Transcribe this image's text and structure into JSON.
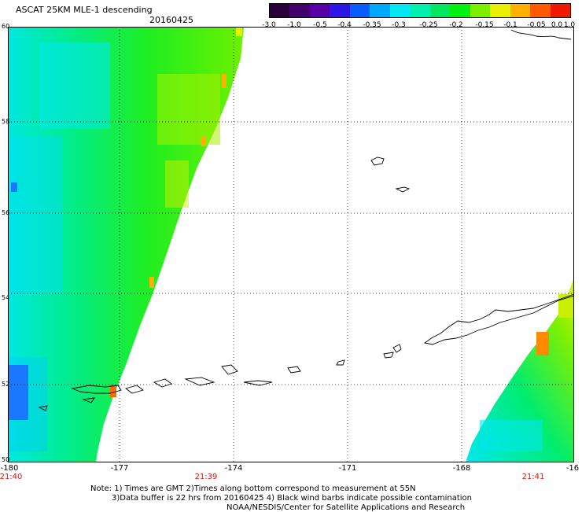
{
  "header": {
    "title": "ASCAT 25KM MLE-1 descending",
    "date": "20160425"
  },
  "colorbar": {
    "colors": [
      "#2a003a",
      "#42006a",
      "#5800a8",
      "#2b17e6",
      "#0a5cff",
      "#00a8ff",
      "#00e8f0",
      "#00f0b0",
      "#00e860",
      "#00f010",
      "#7af000",
      "#e8f000",
      "#ffb000",
      "#ff5a00",
      "#f01800"
    ],
    "labels": [
      "-3.0",
      "-1.0",
      "-0.5",
      "-0.4",
      "-0.35",
      "-0.3",
      "-0.25",
      "-0.2",
      "-0.15",
      "-0.1",
      "-0.05",
      "0.0",
      "1.0"
    ]
  },
  "map": {
    "lat_labels": [
      "60",
      "58",
      "56",
      "54",
      "52",
      "50"
    ],
    "lon_labels": [
      "-180",
      "-177",
      "-174",
      "-171",
      "-168",
      "-16"
    ],
    "times": [
      "21:40",
      "21:39",
      "21:41"
    ]
  },
  "footer": {
    "line1": "Note: 1) Times are GMT 2)Times along bottom correspond to measurement at 55N",
    "line2": "3)Data buffer is 22 hrs from 20160425 4) Black wind barbs indicate possible contamination",
    "line3": "NOAA/NESDIS/Center for Satellite Applications and Research"
  }
}
